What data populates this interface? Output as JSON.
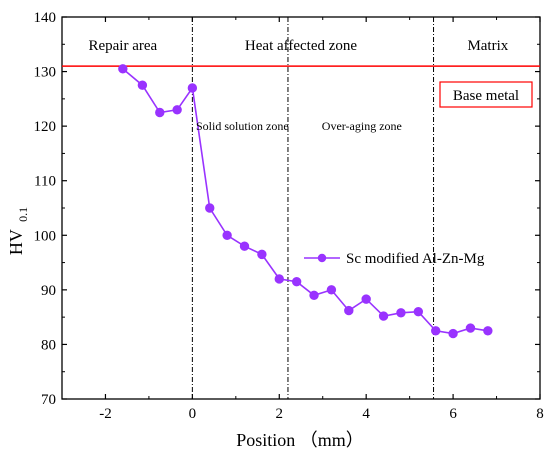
{
  "chart_data": {
    "type": "line",
    "xlabel": "Position （mm）",
    "ylabel": "HV",
    "ylabel_sub": "0.1",
    "xlim": [
      -3,
      8
    ],
    "ylim": [
      70,
      140
    ],
    "xticks": [
      -2,
      0,
      2,
      4,
      6,
      8
    ],
    "yticks": [
      70,
      80,
      90,
      100,
      110,
      120,
      130,
      140
    ],
    "series": [
      {
        "name": "Sc modified Al-Zn-Mg",
        "color": "#9933ff",
        "marker": "circle",
        "x": [
          -1.6,
          -1.15,
          -0.75,
          -0.35,
          0.0,
          0.4,
          0.8,
          1.2,
          1.6,
          2.0,
          2.4,
          2.8,
          3.2,
          3.6,
          4.0,
          4.4,
          4.8,
          5.2,
          5.6,
          6.0,
          6.4,
          6.8
        ],
        "y": [
          130.5,
          127.5,
          122.5,
          123.0,
          127.0,
          105.0,
          100.0,
          98.0,
          96.5,
          92.0,
          91.5,
          89.0,
          90.0,
          86.2,
          88.3,
          85.2,
          85.8,
          86.0,
          82.5,
          82.0,
          83.0,
          82.5
        ]
      }
    ],
    "reference_line": {
      "label": "Base metal",
      "value": 131,
      "color": "#ff0000"
    },
    "zone_dividers": [
      0,
      2.2,
      5.55
    ],
    "zones": [
      {
        "label": "Repair area",
        "x": -1.6
      },
      {
        "label": "Heat affected zone",
        "x": 2.5
      },
      {
        "label": "Matrix",
        "x": 6.8
      }
    ],
    "sub_zones": [
      {
        "label": "Solid solution zone",
        "x": 1.15
      },
      {
        "label": "Over-aging zone",
        "x": 3.9
      }
    ],
    "legend_position": "right"
  }
}
